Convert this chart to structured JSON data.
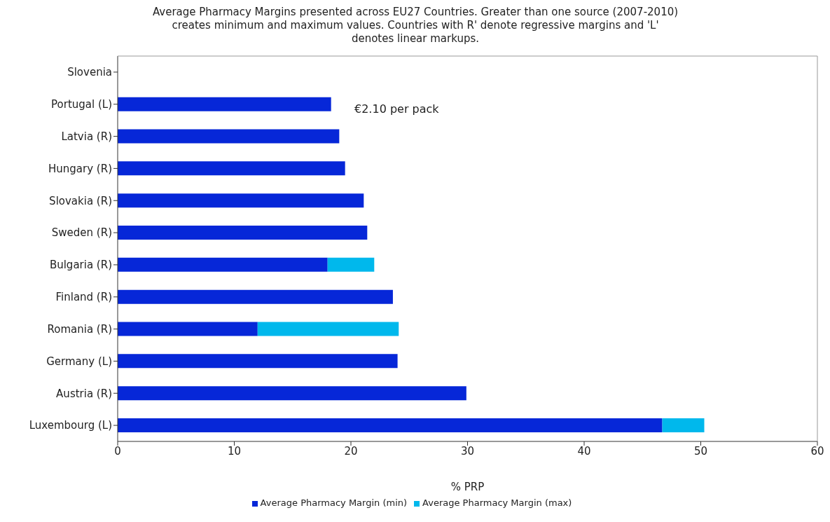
{
  "chart_data": {
    "type": "bar",
    "orientation": "horizontal",
    "stacked": true,
    "title": "Average Pharmacy Margins presented across EU27 Countries.  Greater than one source (2007-2010) creates minimum and maximum values. Countries with R' denote regressive margins and 'L' denotes linear markups.",
    "xlabel": "% PRP",
    "categories": [
      "Slovenia",
      "Portugal (L)",
      "Latvia (R)",
      "Hungary (R)",
      "Slovakia (R)",
      "Sweden (R)",
      "Bulgaria (R)",
      "Finland (R)",
      "Romania (R)",
      "Germany (L)",
      "Austria (R)",
      "Luxembourg (L)"
    ],
    "series": [
      {
        "name": "Average Pharmacy Margin (min)",
        "color": "#0627d8",
        "values": [
          null,
          18.3,
          19.0,
          19.5,
          21.1,
          21.4,
          18.0,
          23.6,
          12.0,
          24.0,
          29.9,
          46.7
        ]
      },
      {
        "name": "Average Pharmacy Margin (max)",
        "color": "#00b8ec",
        "values": [
          null,
          null,
          null,
          null,
          null,
          null,
          4.0,
          null,
          12.1,
          null,
          null,
          3.6
        ]
      }
    ],
    "xlim": [
      0,
      60
    ],
    "xticks": [
      0,
      10,
      20,
      30,
      40,
      50,
      60
    ],
    "annotations": [
      "€2.10 per pack"
    ],
    "grid": false,
    "legend": "bottom"
  }
}
